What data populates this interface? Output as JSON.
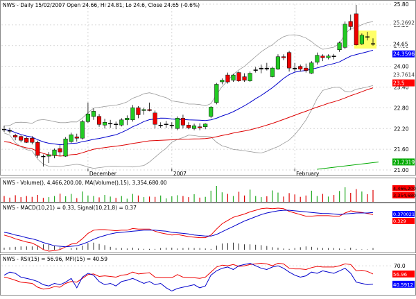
{
  "chart_data": [
    {
      "type": "candlestick",
      "title": "NWS - Daily 15/02/2007 Open 24.66, Hi 24.81, Lo 24.6, Close 24.65 (-0.6%)",
      "title_display": "NWS - Daily 15/02/2007 Open 24.66, Hi 24.81, Lo 24.6, Close 24.65 (-0.6%)",
      "x_labels": [
        "December",
        "2007",
        "February"
      ],
      "ylim": [
        21.0,
        25.8
      ],
      "y_ticks": [
        "25.80",
        "25.20",
        "24.60",
        "24.00",
        "23.40",
        "22.80",
        "22.20",
        "21.60",
        "21.00"
      ],
      "y_tick_values": [
        25.8,
        25.2,
        24.6,
        24.0,
        23.4,
        22.8,
        22.2,
        21.6,
        21.0
      ],
      "grid": true,
      "candles": [
        {
          "o": 22.18,
          "h": 22.28,
          "l": 22.1,
          "c": 22.17
        },
        {
          "o": 22.14,
          "h": 22.22,
          "l": 22.06,
          "c": 22.13
        },
        {
          "o": 22.0,
          "h": 22.05,
          "l": 21.86,
          "c": 21.95
        },
        {
          "o": 21.97,
          "h": 22.0,
          "l": 21.8,
          "c": 21.86
        },
        {
          "o": 21.92,
          "h": 21.96,
          "l": 21.78,
          "c": 21.8
        },
        {
          "o": 21.92,
          "h": 21.98,
          "l": 21.74,
          "c": 21.8
        },
        {
          "o": 21.8,
          "h": 21.85,
          "l": 21.35,
          "c": 21.42
        },
        {
          "o": 21.4,
          "h": 21.45,
          "l": 21.1,
          "c": 21.38
        },
        {
          "o": 21.4,
          "h": 21.52,
          "l": 21.2,
          "c": 21.44
        },
        {
          "o": 21.42,
          "h": 21.62,
          "l": 21.34,
          "c": 21.58
        },
        {
          "o": 21.62,
          "h": 21.72,
          "l": 21.4,
          "c": 21.52
        },
        {
          "o": 21.4,
          "h": 21.95,
          "l": 21.38,
          "c": 21.9
        },
        {
          "o": 21.82,
          "h": 22.08,
          "l": 21.78,
          "c": 22.02
        },
        {
          "o": 21.96,
          "h": 22.05,
          "l": 21.82,
          "c": 21.92
        },
        {
          "o": 21.92,
          "h": 22.45,
          "l": 21.88,
          "c": 22.4
        },
        {
          "o": 22.4,
          "h": 22.95,
          "l": 22.36,
          "c": 22.62
        },
        {
          "o": 22.55,
          "h": 22.78,
          "l": 22.45,
          "c": 22.7
        },
        {
          "o": 22.55,
          "h": 22.62,
          "l": 22.25,
          "c": 22.32
        },
        {
          "o": 22.3,
          "h": 22.48,
          "l": 22.2,
          "c": 22.38
        },
        {
          "o": 22.35,
          "h": 22.45,
          "l": 22.22,
          "c": 22.35
        },
        {
          "o": 22.33,
          "h": 22.4,
          "l": 22.18,
          "c": 22.32
        },
        {
          "o": 22.3,
          "h": 22.5,
          "l": 22.26,
          "c": 22.45
        },
        {
          "o": 22.45,
          "h": 22.58,
          "l": 22.3,
          "c": 22.5
        },
        {
          "o": 22.45,
          "h": 22.88,
          "l": 22.4,
          "c": 22.8
        },
        {
          "o": 22.8,
          "h": 22.85,
          "l": 22.5,
          "c": 22.6
        },
        {
          "o": 22.72,
          "h": 22.8,
          "l": 22.6,
          "c": 22.75
        },
        {
          "o": 22.75,
          "h": 22.95,
          "l": 22.7,
          "c": 22.72
        },
        {
          "o": 22.65,
          "h": 22.72,
          "l": 22.2,
          "c": 22.32
        },
        {
          "o": 22.3,
          "h": 22.38,
          "l": 22.22,
          "c": 22.3
        },
        {
          "o": 22.32,
          "h": 22.42,
          "l": 22.22,
          "c": 22.33
        },
        {
          "o": 22.3,
          "h": 22.38,
          "l": 22.2,
          "c": 22.3
        },
        {
          "o": 22.2,
          "h": 22.55,
          "l": 22.15,
          "c": 22.5
        },
        {
          "o": 22.5,
          "h": 22.6,
          "l": 22.2,
          "c": 22.3
        },
        {
          "o": 22.3,
          "h": 22.38,
          "l": 22.18,
          "c": 22.22
        },
        {
          "o": 22.2,
          "h": 22.34,
          "l": 22.15,
          "c": 22.28
        },
        {
          "o": 22.25,
          "h": 22.35,
          "l": 22.15,
          "c": 22.22
        },
        {
          "o": 22.25,
          "h": 22.35,
          "l": 22.18,
          "c": 22.33
        },
        {
          "o": 22.55,
          "h": 22.85,
          "l": 22.5,
          "c": 22.82
        },
        {
          "o": 22.95,
          "h": 23.52,
          "l": 22.9,
          "c": 23.48
        },
        {
          "o": 23.55,
          "h": 23.65,
          "l": 23.48,
          "c": 23.6
        },
        {
          "o": 23.75,
          "h": 23.82,
          "l": 23.5,
          "c": 23.55
        },
        {
          "o": 23.6,
          "h": 23.78,
          "l": 23.55,
          "c": 23.75
        },
        {
          "o": 23.82,
          "h": 23.85,
          "l": 23.55,
          "c": 23.58
        },
        {
          "o": 23.7,
          "h": 23.8,
          "l": 23.55,
          "c": 23.6
        },
        {
          "o": 23.58,
          "h": 23.85,
          "l": 23.55,
          "c": 23.8
        },
        {
          "o": 23.88,
          "h": 23.98,
          "l": 23.82,
          "c": 23.9
        },
        {
          "o": 23.92,
          "h": 24.05,
          "l": 23.8,
          "c": 23.95
        },
        {
          "o": 23.95,
          "h": 24.1,
          "l": 23.88,
          "c": 23.92
        },
        {
          "o": 23.7,
          "h": 23.98,
          "l": 23.68,
          "c": 23.95
        },
        {
          "o": 23.92,
          "h": 24.35,
          "l": 23.9,
          "c": 24.28
        },
        {
          "o": 24.28,
          "h": 24.35,
          "l": 24.18,
          "c": 24.25
        },
        {
          "o": 24.4,
          "h": 24.45,
          "l": 23.85,
          "c": 23.95
        },
        {
          "o": 23.95,
          "h": 24.1,
          "l": 23.85,
          "c": 23.92
        },
        {
          "o": 24.0,
          "h": 24.05,
          "l": 23.85,
          "c": 23.92
        },
        {
          "o": 23.95,
          "h": 24.08,
          "l": 23.82,
          "c": 23.88
        },
        {
          "o": 23.8,
          "h": 24.15,
          "l": 23.78,
          "c": 24.1
        },
        {
          "o": 24.12,
          "h": 24.4,
          "l": 24.05,
          "c": 24.32
        },
        {
          "o": 24.3,
          "h": 24.35,
          "l": 24.15,
          "c": 24.25
        },
        {
          "o": 24.25,
          "h": 24.35,
          "l": 24.2,
          "c": 24.3
        },
        {
          "o": 24.3,
          "h": 24.36,
          "l": 24.2,
          "c": 24.28
        },
        {
          "o": 24.48,
          "h": 24.72,
          "l": 24.42,
          "c": 24.68
        },
        {
          "o": 24.55,
          "h": 25.3,
          "l": 24.5,
          "c": 25.22
        },
        {
          "o": 25.3,
          "h": 25.5,
          "l": 25.05,
          "c": 25.15
        },
        {
          "o": 25.52,
          "h": 25.78,
          "l": 24.6,
          "c": 24.62
        },
        {
          "o": 24.65,
          "h": 24.95,
          "l": 24.62,
          "c": 24.9
        },
        {
          "o": 24.86,
          "h": 25.0,
          "l": 24.75,
          "c": 24.84
        },
        {
          "o": 24.66,
          "h": 24.81,
          "l": 24.6,
          "c": 24.65
        }
      ],
      "price_labels": [
        {
          "text": "25.2692",
          "value": 25.2692,
          "bg": "#ffffff",
          "fg": "#444444"
        },
        {
          "text": "24.65",
          "value": 24.65,
          "bg": "#ffffff",
          "fg": "#000000"
        },
        {
          "text": "24.3596",
          "value": 24.3596,
          "bg": "#0000ff",
          "fg": "#ffffff"
        },
        {
          "text": "23.7614",
          "value": 23.7614,
          "bg": "#ffffff",
          "fg": "#444444"
        },
        {
          "text": "23.5",
          "value": 23.52,
          "bg": "#ff0000",
          "fg": "#ffffff"
        },
        {
          "text": "21.2319",
          "value": 21.2319,
          "bg": "#00aa00",
          "fg": "#ffffff"
        }
      ],
      "colors": {
        "up": "#22cc22",
        "down": "#ee0000",
        "ma_short": "#0000cc",
        "ma_long": "#dd0000",
        "bands": "#999999",
        "highlight": "#ffff66"
      }
    },
    {
      "type": "bar",
      "title": "NWS - Volume(), 4,466,200.00, MA(Volume(),15), 3,354,680.00",
      "title_display": "NWS - Volume(), 4,466,200.00, MA(Volume(),15), 3,354,680.00",
      "volume_values": [
        2.2,
        1.6,
        2.5,
        1.8,
        2.2,
        1.9,
        2.6,
        1.5,
        1.8,
        2.2,
        3.1,
        2.1,
        3.0,
        1.4,
        3.9,
        2.4,
        2.2,
        1.7,
        2.6,
        2.0,
        1.5,
        2.2,
        1.2,
        3.0,
        2.4,
        1.8,
        2.0,
        1.9,
        2.4,
        1.3,
        2.1,
        2.5,
        2.2,
        1.8,
        2.9,
        1.6,
        1.9,
        4.2,
        6.0,
        3.6,
        3.0,
        2.2,
        3.8,
        2.4,
        4.6,
        2.2,
        1.8,
        2.1,
        4.3,
        3.5,
        2.0,
        3.3,
        2.8,
        1.9,
        2.4,
        4.2,
        2.2,
        3.0,
        2.0,
        2.6,
        4.1,
        5.5,
        3.4,
        4.8,
        3.9,
        2.9,
        4.47
      ],
      "ma_value": "3,354,680.00",
      "labels": [
        {
          "text": "4,466,200",
          "bg": "#ff0000",
          "fg": "#000000"
        },
        {
          "text": "3,354,680",
          "bg": "#ff0000",
          "fg": "#000000"
        }
      ]
    },
    {
      "type": "line",
      "title": "NWS - MACD(10,21) = 0.33, Signal(10,21,8) = 0.37",
      "title_display": "NWS - MACD(10,21) = 0.33, Signal(10,21,8) = 0.37",
      "macd": [
        -0.05,
        -0.08,
        -0.12,
        -0.15,
        -0.18,
        -0.2,
        -0.25,
        -0.32,
        -0.35,
        -0.34,
        -0.32,
        -0.27,
        -0.22,
        -0.2,
        -0.12,
        -0.02,
        0.04,
        0.05,
        0.05,
        0.04,
        0.03,
        0.04,
        0.04,
        0.07,
        0.06,
        0.06,
        0.06,
        0.02,
        -0.01,
        -0.03,
        -0.05,
        -0.04,
        -0.06,
        -0.08,
        -0.09,
        -0.1,
        -0.1,
        -0.05,
        0.06,
        0.16,
        0.22,
        0.28,
        0.31,
        0.34,
        0.38,
        0.41,
        0.44,
        0.45,
        0.44,
        0.45,
        0.44,
        0.39,
        0.36,
        0.33,
        0.3,
        0.3,
        0.31,
        0.31,
        0.31,
        0.3,
        0.3,
        0.36,
        0.4,
        0.38,
        0.37,
        0.35,
        0.33
      ],
      "signal": [
        0.0,
        -0.02,
        -0.05,
        -0.07,
        -0.1,
        -0.12,
        -0.15,
        -0.19,
        -0.22,
        -0.25,
        -0.26,
        -0.27,
        -0.26,
        -0.25,
        -0.22,
        -0.18,
        -0.13,
        -0.09,
        -0.06,
        -0.03,
        -0.01,
        0.0,
        0.01,
        0.02,
        0.03,
        0.04,
        0.04,
        0.04,
        0.03,
        0.02,
        0.0,
        -0.01,
        -0.02,
        -0.03,
        -0.05,
        -0.06,
        -0.07,
        -0.07,
        -0.04,
        0.01,
        0.06,
        0.11,
        0.16,
        0.21,
        0.25,
        0.29,
        0.33,
        0.36,
        0.38,
        0.4,
        0.41,
        0.41,
        0.4,
        0.39,
        0.38,
        0.37,
        0.36,
        0.35,
        0.35,
        0.34,
        0.33,
        0.34,
        0.35,
        0.36,
        0.36,
        0.36,
        0.37
      ],
      "labels": [
        {
          "text": "0.370021",
          "bg": "#0000ff",
          "fg": "#ffffff"
        },
        {
          "text": "0.329",
          "bg": "#ff0000",
          "fg": "#ffffff"
        }
      ]
    },
    {
      "type": "line",
      "title": "NWS - RSI(15) = 56.96, MFI(15) = 40.59",
      "title_display": "NWS - RSI(15) = 56.96, MFI(15) = 40.59",
      "rsi": [
        52,
        50,
        47,
        44,
        43,
        42,
        36,
        33,
        34,
        37,
        36,
        42,
        45,
        44,
        50,
        56,
        57,
        53,
        54,
        53,
        52,
        55,
        56,
        60,
        57,
        58,
        59,
        52,
        51,
        51,
        51,
        56,
        52,
        51,
        51,
        50,
        52,
        60,
        68,
        71,
        70,
        72,
        69,
        70,
        72,
        73,
        74,
        73,
        70,
        74,
        73,
        66,
        65,
        65,
        64,
        67,
        69,
        68,
        68,
        68,
        70,
        73,
        72,
        62,
        63,
        61,
        57
      ],
      "mfi": [
        55,
        60,
        58,
        52,
        50,
        48,
        45,
        40,
        38,
        42,
        40,
        44,
        50,
        35,
        52,
        58,
        55,
        45,
        40,
        42,
        38,
        45,
        47,
        50,
        46,
        42,
        45,
        40,
        42,
        35,
        30,
        34,
        36,
        38,
        40,
        35,
        38,
        55,
        62,
        66,
        68,
        64,
        70,
        72,
        74,
        70,
        66,
        64,
        68,
        70,
        66,
        60,
        55,
        52,
        54,
        60,
        58,
        62,
        60,
        58,
        62,
        66,
        58,
        44,
        42,
        40,
        41
      ],
      "reference_tick": "70.0",
      "reference_value": 70,
      "labels": [
        {
          "text": "56.96",
          "bg": "#ff0000",
          "fg": "#ffffff"
        },
        {
          "text": "40.5912",
          "bg": "#0000ff",
          "fg": "#ffffff"
        }
      ]
    }
  ]
}
